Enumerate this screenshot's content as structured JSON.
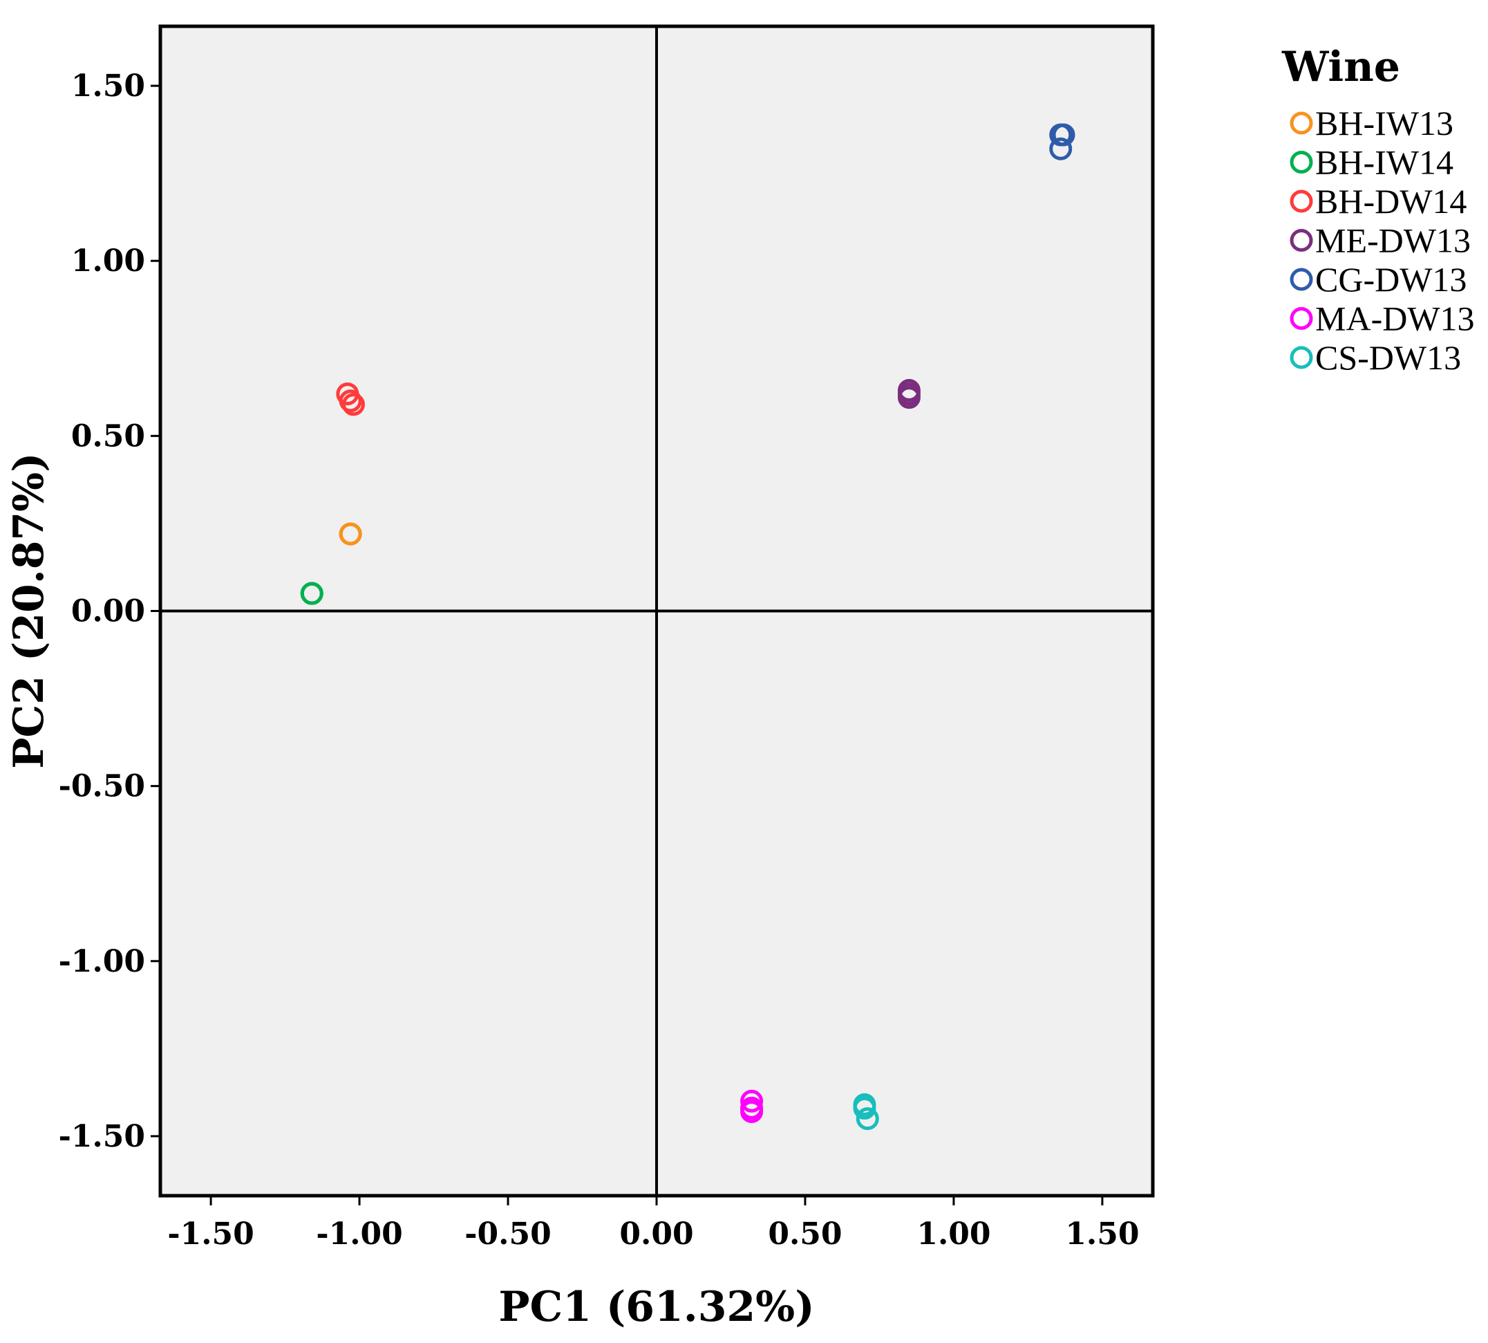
{
  "chart_data": {
    "type": "scatter",
    "title": "",
    "xlabel": "PC1 (61.32%)",
    "ylabel": "PC2 (20.87%)",
    "xlim": [
      -1.67,
      1.67
    ],
    "ylim": [
      -1.67,
      1.67
    ],
    "xticks": [
      -1.5,
      -1.0,
      -0.5,
      0.0,
      0.5,
      1.0,
      1.5
    ],
    "yticks": [
      -1.5,
      -1.0,
      -0.5,
      0.0,
      0.5,
      1.0,
      1.5
    ],
    "xtick_labels": [
      "-1.50",
      "-1.00",
      "-0.50",
      "0.00",
      "0.50",
      "1.00",
      "1.50"
    ],
    "ytick_labels": [
      "-1.50",
      "-1.00",
      "-0.50",
      "0.00",
      "0.50",
      "1.00",
      "1.50"
    ],
    "grid": false,
    "zero_lines": true,
    "legend": {
      "title": "Wine",
      "position": "right"
    },
    "series": [
      {
        "name": "BH-IW13",
        "color": "#f7931e",
        "points": [
          [
            -1.03,
            0.22
          ],
          [
            -1.03,
            0.22
          ],
          [
            -1.03,
            0.22
          ]
        ]
      },
      {
        "name": "BH-IW14",
        "color": "#00b050",
        "points": [
          [
            -1.16,
            0.05
          ],
          [
            -1.16,
            0.05
          ],
          [
            -1.16,
            0.05
          ]
        ]
      },
      {
        "name": "BH-DW14",
        "color": "#ff3b3b",
        "points": [
          [
            -1.04,
            0.62
          ],
          [
            -1.03,
            0.6
          ],
          [
            -1.02,
            0.59
          ]
        ]
      },
      {
        "name": "ME-DW13",
        "color": "#7b2d7e",
        "points": [
          [
            0.85,
            0.63
          ],
          [
            0.85,
            0.61
          ],
          [
            0.85,
            0.62
          ]
        ]
      },
      {
        "name": "CG-DW13",
        "color": "#2e5caa",
        "points": [
          [
            1.36,
            1.36
          ],
          [
            1.36,
            1.32
          ],
          [
            1.37,
            1.36
          ]
        ]
      },
      {
        "name": "MA-DW13",
        "color": "#ff00ff",
        "points": [
          [
            0.32,
            -1.4
          ],
          [
            0.32,
            -1.43
          ],
          [
            0.32,
            -1.42
          ]
        ]
      },
      {
        "name": "CS-DW13",
        "color": "#17bebb",
        "points": [
          [
            0.7,
            -1.41
          ],
          [
            0.71,
            -1.45
          ],
          [
            0.7,
            -1.42
          ]
        ]
      }
    ]
  }
}
